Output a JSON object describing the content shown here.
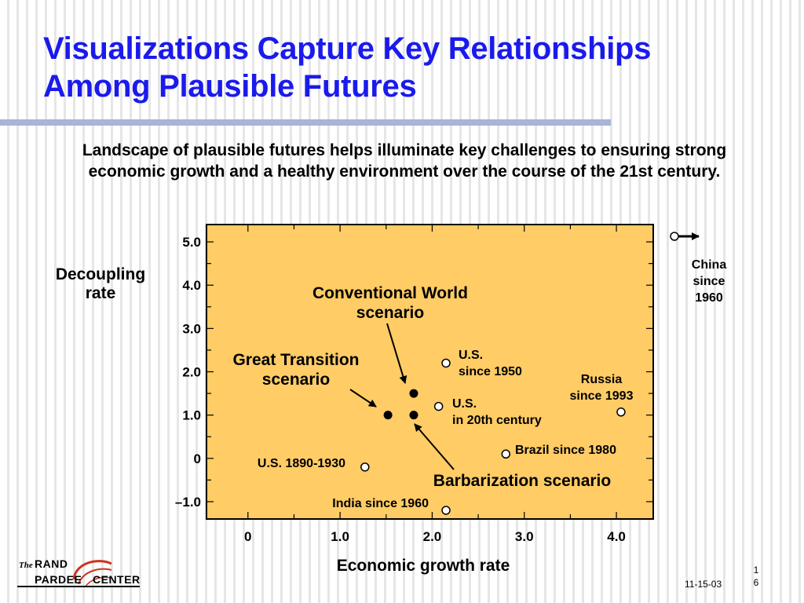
{
  "slide": {
    "title_line1": "Visualizations Capture Key Relationships",
    "title_line2": "Among Plausible Futures",
    "subtitle": "Landscape of plausible futures helps illuminate key challenges to ensuring strong economic growth and a healthy environment over the course of the 21st century."
  },
  "footer": {
    "logo_the": "The",
    "logo_rand": "RAND",
    "logo_left": "PARDEE",
    "logo_right": "CENTER",
    "date": "11-15-03",
    "page_top": "1",
    "page_bottom": "6"
  },
  "colors": {
    "title": "#1a1aee",
    "plot_background": "#ffcc66",
    "title_rule": "#a8b4d8"
  },
  "chart_data": {
    "type": "scatter",
    "title": "",
    "xlabel": "Economic growth rate",
    "ylabel_line1": "Decoupling",
    "ylabel_line2": "rate",
    "xlim": [
      -0.45,
      4.4
    ],
    "ylim": [
      -1.4,
      5.4
    ],
    "x_ticks": [
      {
        "value": 0,
        "label": "0"
      },
      {
        "value": 1,
        "label": "1.0"
      },
      {
        "value": 2,
        "label": "2.0"
      },
      {
        "value": 3,
        "label": "3.0"
      },
      {
        "value": 4,
        "label": "4.0"
      }
    ],
    "y_ticks": [
      {
        "value": 5,
        "label": "5.0"
      },
      {
        "value": 4,
        "label": "4.0"
      },
      {
        "value": 3,
        "label": "3.0"
      },
      {
        "value": 2,
        "label": "2.0"
      },
      {
        "value": 1,
        "label": "1.0"
      },
      {
        "value": 0,
        "label": "0"
      },
      {
        "value": -1,
        "label": "–1.0"
      }
    ],
    "grid": false,
    "historical": [
      {
        "name": "us-1950",
        "x": 2.15,
        "y": 2.2,
        "label": [
          "U.S.",
          "since 1950"
        ]
      },
      {
        "name": "us-20th-century",
        "x": 2.07,
        "y": 1.2,
        "label": [
          "U.S.",
          "in 20th century"
        ]
      },
      {
        "name": "russia-1993",
        "x": 4.05,
        "y": 1.07,
        "label": [
          "Russia",
          "since 1993"
        ]
      },
      {
        "name": "brazil-1980",
        "x": 2.8,
        "y": 0.1,
        "label": [
          "Brazil since 1980"
        ]
      },
      {
        "name": "us-1890-1930",
        "x": 1.27,
        "y": -0.2,
        "label": [
          "U.S. 1890-1930"
        ]
      },
      {
        "name": "india-1960",
        "x": 2.15,
        "y": -1.2,
        "label": [
          "India since 1960"
        ]
      }
    ],
    "scenarios": [
      {
        "name": "conventional-world-point",
        "x": 1.8,
        "y": 1.5
      },
      {
        "name": "great-transition-point",
        "x": 1.52,
        "y": 1.0
      },
      {
        "name": "barbarization-point",
        "x": 1.8,
        "y": 1.0
      }
    ],
    "scenario_labels": [
      {
        "name": "conventional-world",
        "lines": [
          "Conventional World",
          "scenario"
        ]
      },
      {
        "name": "great-transition",
        "lines": [
          "Great Transition",
          "scenario"
        ]
      },
      {
        "name": "barbarization",
        "lines": [
          "Barbarization scenario"
        ]
      }
    ],
    "off_chart": {
      "label": [
        "China",
        "since",
        "1960"
      ]
    }
  }
}
